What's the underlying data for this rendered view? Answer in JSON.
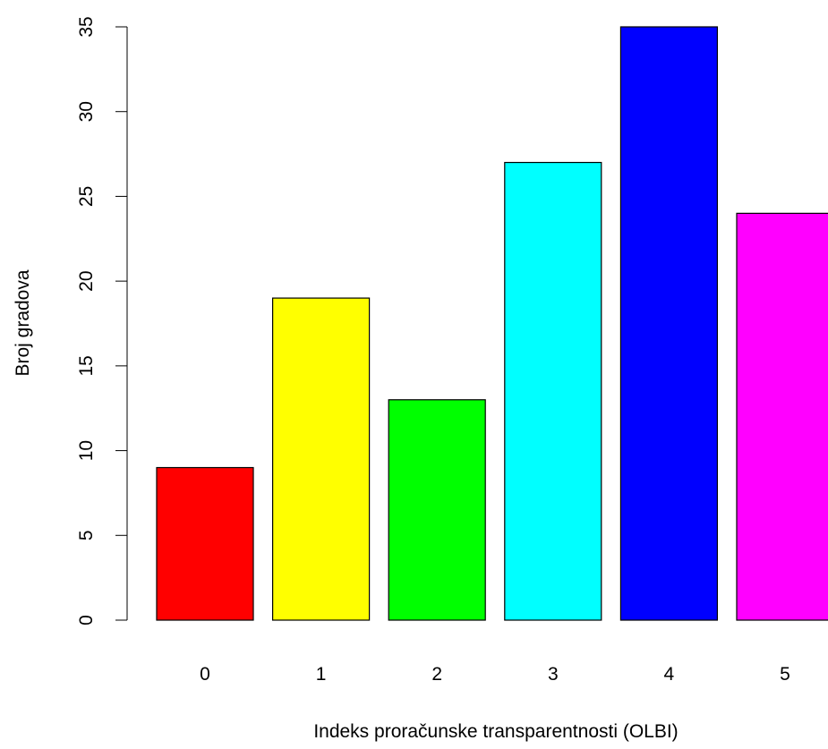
{
  "chart_data": {
    "type": "bar",
    "categories": [
      "0",
      "1",
      "2",
      "3",
      "4",
      "5"
    ],
    "values": [
      9,
      19,
      13,
      27,
      35,
      24
    ],
    "colors": [
      "#ff0000",
      "#ffff00",
      "#00ff00",
      "#00ffff",
      "#0000ff",
      "#ff00ff"
    ],
    "xlabel": "Indeks proračunske transparentnosti (OLBI)",
    "ylabel": "Broj gradova",
    "ylim": [
      0,
      35
    ],
    "yticks": [
      0,
      5,
      10,
      15,
      20,
      25,
      30,
      35
    ],
    "grid": false,
    "legend": "none"
  }
}
